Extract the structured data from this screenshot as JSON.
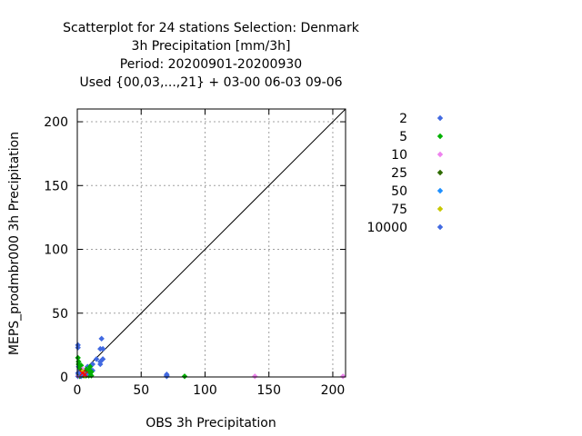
{
  "chart_data": {
    "type": "scatter",
    "title_lines": [
      "Scatterplot for   24 stations Selection: Denmark",
      "3h Precipitation [mm/3h]",
      "Period: 20200901-20200930",
      "Used {00,03,...,21} + 03-00 06-03 09-06"
    ],
    "xlabel": "OBS 3h Precipitation",
    "ylabel": "MEPS_prodmbr000 3h Precipitation",
    "xlim": [
      0,
      210
    ],
    "ylim": [
      0,
      210
    ],
    "xticks": [
      0,
      50,
      100,
      150,
      200
    ],
    "yticks": [
      0,
      50,
      100,
      150,
      200
    ],
    "grid": true,
    "diagonal": true,
    "legend_placement": "right",
    "series": [
      {
        "name": "2",
        "color": "#4169e1",
        "points": [
          [
            0.5,
            0.5
          ],
          [
            1,
            2
          ],
          [
            2,
            1
          ],
          [
            0.5,
            3
          ],
          [
            3,
            0.5
          ],
          [
            1.5,
            4
          ],
          [
            4,
            1.5
          ],
          [
            2,
            6
          ],
          [
            6,
            2
          ],
          [
            1,
            8
          ],
          [
            0.5,
            23
          ],
          [
            0.5,
            25
          ],
          [
            5,
            5
          ],
          [
            8,
            4
          ],
          [
            10,
            6
          ],
          [
            12,
            10
          ],
          [
            18,
            22
          ],
          [
            19,
            30
          ],
          [
            20,
            22
          ],
          [
            18,
            12
          ],
          [
            20,
            14
          ],
          [
            18,
            10
          ],
          [
            70,
            1
          ],
          [
            70,
            2
          ],
          [
            70,
            0.5
          ],
          [
            8,
            8
          ],
          [
            10,
            2
          ],
          [
            3,
            3
          ],
          [
            15,
            14
          ],
          [
            12,
            5
          ]
        ]
      },
      {
        "name": "5",
        "color": "#00b000",
        "points": [
          [
            0.5,
            15
          ],
          [
            1,
            12
          ],
          [
            1,
            10
          ],
          [
            2,
            7
          ],
          [
            3,
            9
          ],
          [
            5,
            4
          ],
          [
            6,
            3
          ],
          [
            7,
            6
          ],
          [
            8,
            2
          ],
          [
            9,
            5
          ],
          [
            10,
            3
          ],
          [
            10,
            8
          ],
          [
            11,
            4
          ],
          [
            9,
            1
          ],
          [
            5,
            1
          ],
          [
            2,
            0.5
          ],
          [
            84,
            0.5
          ],
          [
            4,
            2
          ],
          [
            7,
            1
          ],
          [
            11,
            1
          ]
        ]
      },
      {
        "name": "10",
        "color": "#ee82ee",
        "points": [
          [
            1,
            1
          ],
          [
            3,
            2
          ],
          [
            5,
            3
          ],
          [
            4,
            6
          ],
          [
            139,
            0.5
          ],
          [
            208,
            0.5
          ]
        ]
      },
      {
        "name": "25",
        "color": "#2e6b00",
        "points": [
          [
            2,
            2
          ],
          [
            4,
            3
          ],
          [
            3,
            5
          ],
          [
            6,
            4
          ]
        ]
      },
      {
        "name": "50",
        "color": "#1e90ff",
        "points": [
          [
            3,
            1
          ],
          [
            5,
            2
          ]
        ]
      },
      {
        "name": "75",
        "color": "#c8c800",
        "points": [
          [
            4,
            4
          ],
          [
            6,
            1
          ]
        ]
      },
      {
        "name": "10000",
        "color": "#4169e1",
        "points": [
          [
            2,
            3
          ],
          [
            7,
            2
          ],
          [
            3,
            1
          ]
        ]
      }
    ],
    "overlay_markers": [
      {
        "color": "#ff0000",
        "points": [
          [
            4,
            3
          ],
          [
            6,
            2
          ]
        ]
      }
    ]
  }
}
